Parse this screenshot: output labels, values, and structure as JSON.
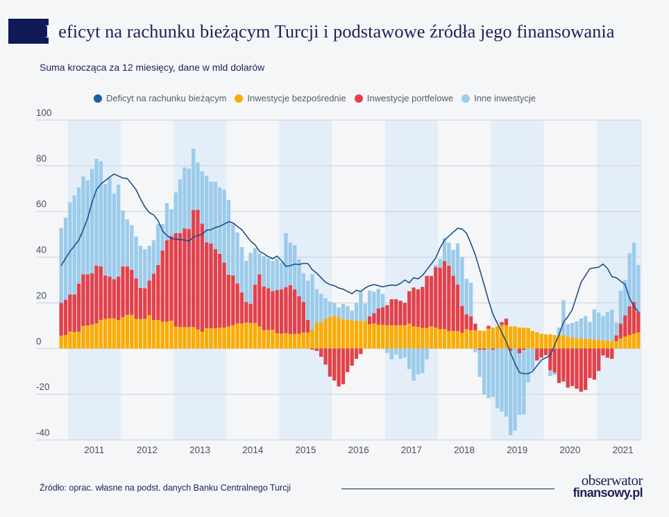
{
  "title": {
    "first_letter": "D",
    "rest": "eficyt na rachunku bieżącym Turcji i podstawowe źródła jego finansowania"
  },
  "subtitle": "Suma krocząca za 12 miesięcy, dane w mld dolarów",
  "source": "Źródło: oprac. własne na podst. danych Banku Centralnego Turcji",
  "logo": {
    "line1": "obserwator",
    "line2": "finansowy.pl"
  },
  "colors": {
    "deficit": "#1b4f85",
    "fdi": "#fbab00",
    "portfolio": "#e2414b",
    "other": "#9ccbeb",
    "band": "#e4eef8",
    "title_block": "#0f1a56"
  },
  "chart_data": {
    "type": "bar",
    "stacked": true,
    "legend_position": "top",
    "grid": true,
    "ylim": [
      -40,
      100
    ],
    "yticks": [
      100,
      80,
      60,
      40,
      20,
      0,
      -20,
      -40
    ],
    "year_labels": [
      "2011",
      "2012",
      "2013",
      "2014",
      "2015",
      "2016",
      "2017",
      "2018",
      "2019",
      "2020",
      "2021"
    ],
    "x": [
      "2010-11",
      "2010-12",
      "2011-01",
      "2011-02",
      "2011-03",
      "2011-04",
      "2011-05",
      "2011-06",
      "2011-07",
      "2011-08",
      "2011-09",
      "2011-10",
      "2011-11",
      "2011-12",
      "2012-01",
      "2012-02",
      "2012-03",
      "2012-04",
      "2012-05",
      "2012-06",
      "2012-07",
      "2012-08",
      "2012-09",
      "2012-10",
      "2012-11",
      "2012-12",
      "2013-01",
      "2013-02",
      "2013-03",
      "2013-04",
      "2013-05",
      "2013-06",
      "2013-07",
      "2013-08",
      "2013-09",
      "2013-10",
      "2013-11",
      "2013-12",
      "2014-01",
      "2014-02",
      "2014-03",
      "2014-04",
      "2014-05",
      "2014-06",
      "2014-07",
      "2014-08",
      "2014-09",
      "2014-10",
      "2014-11",
      "2014-12",
      "2015-01",
      "2015-02",
      "2015-03",
      "2015-04",
      "2015-05",
      "2015-06",
      "2015-07",
      "2015-08",
      "2015-09",
      "2015-10",
      "2015-11",
      "2015-12",
      "2016-01",
      "2016-02",
      "2016-03",
      "2016-04",
      "2016-05",
      "2016-06",
      "2016-07",
      "2016-08",
      "2016-09",
      "2016-10",
      "2016-11",
      "2016-12",
      "2017-01",
      "2017-02",
      "2017-03",
      "2017-04",
      "2017-05",
      "2017-06",
      "2017-07",
      "2017-08",
      "2017-09",
      "2017-10",
      "2017-11",
      "2017-12",
      "2018-01",
      "2018-02",
      "2018-03",
      "2018-04",
      "2018-05",
      "2018-06",
      "2018-07",
      "2018-08",
      "2018-09",
      "2018-10",
      "2018-11",
      "2018-12",
      "2019-01",
      "2019-02",
      "2019-03",
      "2019-04",
      "2019-05",
      "2019-06",
      "2019-07",
      "2019-08",
      "2019-09",
      "2019-10",
      "2019-11",
      "2019-12",
      "2020-01",
      "2020-02",
      "2020-03",
      "2020-04",
      "2020-05",
      "2020-06",
      "2020-07",
      "2020-08",
      "2020-09",
      "2020-10",
      "2020-11",
      "2020-12",
      "2021-01",
      "2021-02",
      "2021-03",
      "2021-04",
      "2021-05",
      "2021-06",
      "2021-07",
      "2021-08",
      "2021-09",
      "2021-10"
    ],
    "series": [
      {
        "name": "Deficyt na rachunku bieżącym",
        "kind": "line",
        "values": [
          36.3,
          39.5,
          42.5,
          45,
          47.5,
          52,
          57,
          64,
          69.5,
          72,
          73.5,
          75,
          76.4,
          75.5,
          74.6,
          74.4,
          72,
          69.5,
          65.5,
          62,
          59.5,
          58.5,
          56,
          51.5,
          49.5,
          48.2,
          47.8,
          47.7,
          47.5,
          47,
          48.8,
          49.5,
          50,
          51.8,
          52,
          53,
          53.5,
          54.5,
          55.5,
          55,
          53.5,
          52,
          49.5,
          47,
          45.5,
          42.5,
          41.5,
          40.2,
          39.3,
          40.5,
          38.5,
          36,
          36.3,
          37,
          36.8,
          37.3,
          37.2,
          34.5,
          33,
          31,
          29,
          28,
          27.5,
          26.5,
          26,
          25,
          24,
          25.5,
          25,
          26.5,
          27.5,
          28,
          27.5,
          27,
          27.5,
          27.8,
          27.6,
          28.5,
          30,
          28.8,
          31,
          30.5,
          32,
          34.5,
          37,
          39.6,
          44,
          47.5,
          49.2,
          51,
          52.6,
          52.3,
          50.5,
          46,
          41,
          34.5,
          28,
          21,
          15,
          11,
          7,
          3,
          -2,
          -6.5,
          -10.5,
          -11,
          -11,
          -10,
          -7.5,
          -5,
          -4,
          -3,
          1.6,
          6,
          11.5,
          14,
          17,
          23,
          29,
          32,
          35,
          35.3,
          35.6,
          37,
          35,
          31.5,
          31,
          29.5,
          28,
          22,
          18.5,
          16
        ]
      },
      {
        "name": "Inwestycje bezpośrednie",
        "kind": "bar",
        "values": [
          5.7,
          5.9,
          7.5,
          7.2,
          7.4,
          9.9,
          10.1,
          10.5,
          11,
          12.5,
          13,
          13.2,
          13.2,
          12.5,
          13.8,
          14.8,
          14.8,
          13,
          13,
          13,
          14.6,
          12.5,
          12.5,
          11.8,
          11.8,
          12.2,
          9.7,
          9.4,
          9.4,
          9.4,
          9.4,
          8.4,
          7.4,
          9,
          8.9,
          8.9,
          9.2,
          9.2,
          9.7,
          10.2,
          11,
          11,
          11.4,
          11.2,
          11.2,
          9.7,
          8,
          8.2,
          8.2,
          6.7,
          6.5,
          6.7,
          6.4,
          6.4,
          6.5,
          7,
          7,
          8.5,
          11.5,
          11.5,
          13,
          13.8,
          14.2,
          13.6,
          12.7,
          12.8,
          12.2,
          12.2,
          12.1,
          12.1,
          10.7,
          11,
          10.4,
          10.4,
          10.2,
          10.2,
          10.2,
          10.2,
          10.2,
          10.9,
          9.7,
          9.5,
          9,
          9,
          9.7,
          9.2,
          8.5,
          8.5,
          7.7,
          7.7,
          7.7,
          6.9,
          8.5,
          8,
          7.9,
          7.9,
          7.7,
          8.7,
          9.2,
          9.7,
          10.2,
          10.2,
          9.7,
          9.7,
          9.2,
          9.2,
          9,
          7.7,
          7.2,
          6.5,
          6.2,
          6.2,
          5.9,
          5.9,
          5.9,
          5.2,
          4.9,
          4.5,
          4.5,
          4.2,
          4.2,
          4,
          4,
          3.6,
          3.4,
          3.4,
          3.3,
          4.5,
          5.2,
          5.9,
          6.5,
          7
        ]
      },
      {
        "name": "Inwestycje portfelowe",
        "kind": "bar",
        "values": [
          14.3,
          15.5,
          16.2,
          16.5,
          21,
          22.6,
          22.4,
          22.5,
          25.3,
          23.5,
          19,
          18.3,
          17.2,
          19,
          22.2,
          21.2,
          19.6,
          17.7,
          13.6,
          13.4,
          15.2,
          20.3,
          24.1,
          31.1,
          35.6,
          37,
          40.8,
          41.1,
          43.2,
          42.9,
          51.3,
          52.3,
          47.2,
          37.5,
          37.1,
          34.6,
          32.2,
          28.4,
          22.6,
          21.8,
          17.5,
          13.6,
          9,
          8.4,
          16.8,
          22.8,
          19.2,
          18.2,
          16.9,
          18.9,
          19.4,
          20.2,
          21.4,
          19.5,
          16.4,
          13.4,
          5.6,
          -0.5,
          -1,
          -3.6,
          -7,
          -12.3,
          -14,
          -16.6,
          -15.6,
          -10.3,
          -7.5,
          -4.5,
          -2.4,
          0,
          3.4,
          4.5,
          7.2,
          7.6,
          8.8,
          11.4,
          11.4,
          10.7,
          9.8,
          14.2,
          17,
          16.4,
          18,
          22.8,
          22.1,
          26.4,
          26.9,
          29.8,
          28.6,
          24.2,
          20.3,
          11.7,
          6.5,
          6.1,
          3,
          -0.6,
          -0.6,
          1.3,
          -0.6,
          0,
          1.4,
          2.9,
          -1,
          0,
          -2.1,
          -0.6,
          0,
          0,
          -5.2,
          -4,
          -2.9,
          -9.5,
          -10.5,
          -15.1,
          -14.4,
          -17.1,
          -16.4,
          -17.6,
          -18.9,
          -18.1,
          -12.9,
          -13.6,
          -9.8,
          -3,
          -4,
          -4.5,
          2.4,
          6.4,
          9.3,
          12.6,
          13.9,
          9
        ]
      },
      {
        "name": "Inne inwestycje",
        "kind": "bar",
        "values": [
          32.8,
          35.9,
          40.3,
          43.3,
          42.1,
          42.8,
          41.1,
          45.6,
          46.7,
          46,
          40,
          43.1,
          37.4,
          40.2,
          24.4,
          20.5,
          19.6,
          18.3,
          18.4,
          17.1,
          15.2,
          14.6,
          18,
          11.6,
          16.3,
          11.7,
          17.8,
          23.5,
          26.7,
          26.5,
          26.7,
          20.8,
          23,
          29.1,
          27,
          29.5,
          29.1,
          31.9,
          32.7,
          22.6,
          22.3,
          19.8,
          18,
          22.3,
          15.9,
          9.1,
          13.2,
          13,
          13.2,
          13.7,
          11.7,
          23.6,
          18.6,
          19.3,
          16.2,
          12.6,
          17.1,
          24,
          14.5,
          12.5,
          9,
          6.7,
          5.8,
          4.4,
          6.8,
          5.8,
          4.4,
          7.7,
          12.6,
          7.6,
          11.3,
          9.4,
          8.5,
          5.9,
          -1.9,
          -4.7,
          -2.6,
          -4.5,
          -4,
          -9,
          -14.1,
          -11.3,
          -10.8,
          -4.7,
          0,
          1,
          3.9,
          10,
          10.1,
          11.3,
          18,
          21.5,
          15.5,
          14.7,
          -1.6,
          -11.8,
          -19.6,
          -21.7,
          -20.6,
          -26.2,
          -27.6,
          -29.8,
          -36.9,
          -35.9,
          -26.9,
          -28.2,
          -14.8,
          -9.5,
          0,
          0,
          0,
          -2.5,
          -1,
          3.3,
          15.3,
          5.5,
          6.3,
          7.4,
          8.7,
          10,
          7.5,
          13.1,
          11.8,
          10.6,
          12.7,
          13.6,
          5.8,
          14.5,
          15.5,
          23.3,
          26,
          20.6
        ]
      }
    ]
  }
}
